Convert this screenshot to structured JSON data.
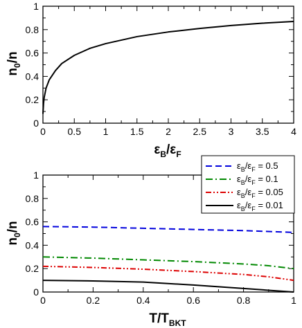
{
  "chart_data": [
    {
      "type": "line",
      "xlabel": {
        "main": "ε",
        "sub1": "B",
        "sep": "/ε",
        "sub2": "F"
      },
      "ylabel": {
        "main": "n",
        "sub": "0",
        "rest": "/n"
      },
      "xlim": [
        0,
        4
      ],
      "ylim": [
        0,
        1
      ],
      "xticks": [
        0,
        0.5,
        1,
        1.5,
        2,
        2.5,
        3,
        3.5,
        4
      ],
      "xtick_labels": [
        "0",
        "0.5",
        "1",
        "1.5",
        "2",
        "2.5",
        "3",
        "3.5",
        "4"
      ],
      "yticks": [
        0,
        0.2,
        0.4,
        0.6,
        0.8,
        1
      ],
      "ytick_labels": [
        "0",
        "0.2",
        "0.4",
        "0.6",
        "0.8",
        "1"
      ],
      "grid": false,
      "series": [
        {
          "color": "#000000",
          "dash": "solid",
          "x": [
            0,
            0.01,
            0.02,
            0.05,
            0.1,
            0.2,
            0.3,
            0.5,
            0.75,
            1,
            1.5,
            2,
            2.5,
            3,
            3.5,
            4
          ],
          "y": [
            0.08,
            0.17,
            0.22,
            0.3,
            0.37,
            0.45,
            0.51,
            0.58,
            0.64,
            0.68,
            0.74,
            0.78,
            0.81,
            0.835,
            0.855,
            0.87
          ]
        }
      ]
    },
    {
      "type": "line",
      "xlabel": {
        "main": "T/T",
        "sub": "BKT"
      },
      "ylabel": {
        "main": "n",
        "sub": "0",
        "rest": "/n"
      },
      "xlim": [
        0,
        1
      ],
      "ylim": [
        0,
        1
      ],
      "xticks": [
        0,
        0.2,
        0.4,
        0.6,
        0.8,
        1
      ],
      "xtick_labels": [
        "0",
        "0.2",
        "0.4",
        "0.6",
        "0.8",
        "1"
      ],
      "yticks": [
        0,
        0.2,
        0.4,
        0.6,
        0.8,
        1
      ],
      "ytick_labels": [
        "0",
        "0.2",
        "0.4",
        "0.6",
        "0.8",
        "1"
      ],
      "grid": false,
      "legend_position": "top-right",
      "series": [
        {
          "label": {
            "a": "ε",
            "b": "B",
            "c": "/ε",
            "d": "F",
            "e": " = 0.5"
          },
          "color": "#0000dd",
          "dash": "dashed",
          "x": [
            0,
            0.2,
            0.4,
            0.6,
            0.8,
            1
          ],
          "y": [
            0.56,
            0.555,
            0.545,
            0.535,
            0.525,
            0.51
          ]
        },
        {
          "label": {
            "a": "ε",
            "b": "B",
            "c": "/ε",
            "d": "F",
            "e": " = 0.1"
          },
          "color": "#008800",
          "dash": "dash-dot",
          "x": [
            0,
            0.2,
            0.4,
            0.6,
            0.8,
            0.9,
            1
          ],
          "y": [
            0.3,
            0.29,
            0.275,
            0.26,
            0.24,
            0.225,
            0.2
          ]
        },
        {
          "label": {
            "a": "ε",
            "b": "B",
            "c": "/ε",
            "d": "F",
            "e": " = 0.05"
          },
          "color": "#dd0000",
          "dash": "dash-dot-dot",
          "x": [
            0,
            0.2,
            0.4,
            0.6,
            0.8,
            0.9,
            1
          ],
          "y": [
            0.22,
            0.21,
            0.195,
            0.175,
            0.15,
            0.13,
            0.1
          ]
        },
        {
          "label": {
            "a": "ε",
            "b": "B",
            "c": "/ε",
            "d": "F",
            "e": " = 0.01"
          },
          "color": "#000000",
          "dash": "solid",
          "x": [
            0,
            0.2,
            0.4,
            0.6,
            0.7,
            0.8,
            0.9,
            1
          ],
          "y": [
            0.1,
            0.095,
            0.085,
            0.06,
            0.045,
            0.03,
            0.015,
            0.0
          ]
        }
      ]
    }
  ]
}
